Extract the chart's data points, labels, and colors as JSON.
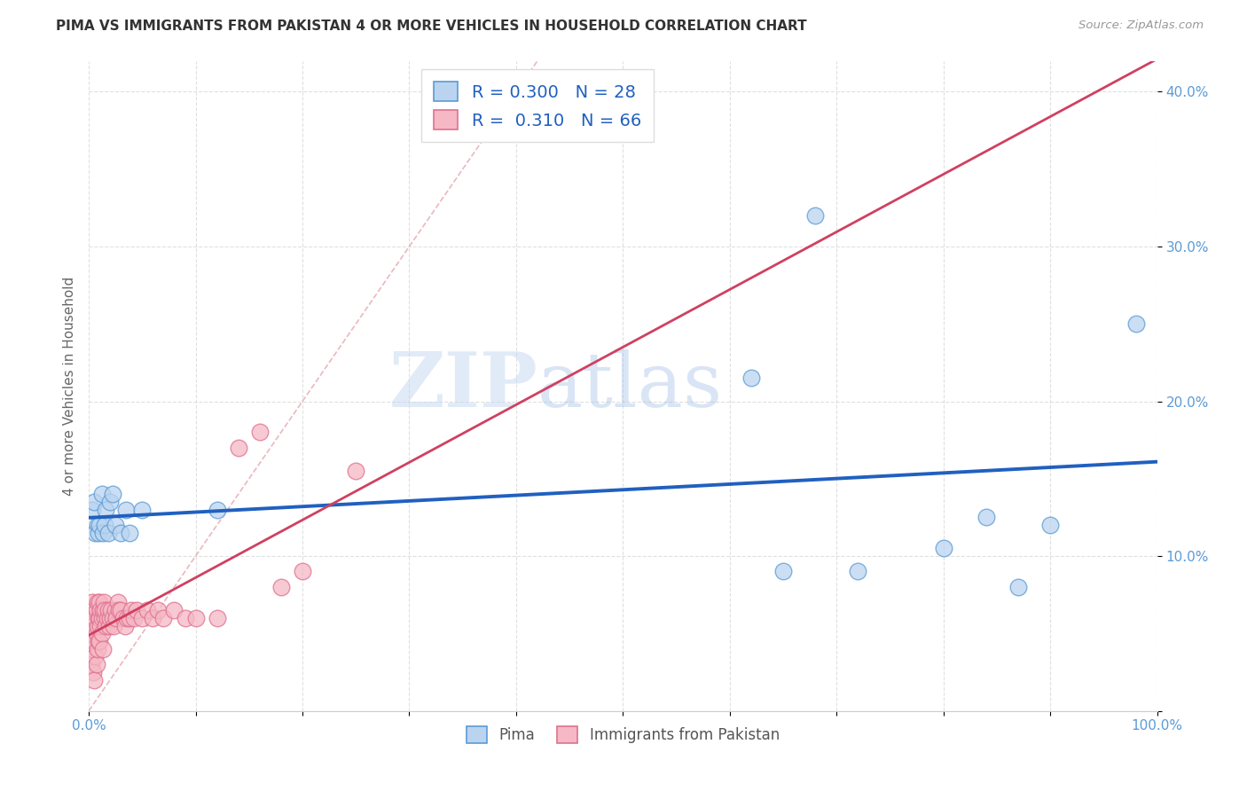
{
  "title": "PIMA VS IMMIGRANTS FROM PAKISTAN 4 OR MORE VEHICLES IN HOUSEHOLD CORRELATION CHART",
  "source": "Source: ZipAtlas.com",
  "ylabel": "4 or more Vehicles in Household",
  "legend_label_1": "Pima",
  "legend_label_2": "Immigrants from Pakistan",
  "r1": 0.3,
  "n1": 28,
  "r2": 0.31,
  "n2": 66,
  "xlim": [
    0,
    1.0
  ],
  "ylim": [
    0,
    0.42
  ],
  "xticks": [
    0.0,
    0.1,
    0.2,
    0.3,
    0.4,
    0.5,
    0.6,
    0.7,
    0.8,
    0.9,
    1.0
  ],
  "xticklabels": [
    "0.0%",
    "",
    "",
    "",
    "",
    "",
    "",
    "",
    "",
    "",
    "100.0%"
  ],
  "yticks": [
    0.0,
    0.1,
    0.2,
    0.3,
    0.4
  ],
  "yticklabels": [
    "",
    "10.0%",
    "20.0%",
    "30.0%",
    "40.0%"
  ],
  "color_pima": "#bad4f0",
  "color_pakistan": "#f5b8c4",
  "color_pima_edge": "#5b9bd5",
  "color_pakistan_edge": "#e07090",
  "color_line_pima": "#2060c0",
  "color_line_pakistan": "#d04060",
  "color_diagonal": "#e8b0b8",
  "pima_x": [
    0.003,
    0.005,
    0.006,
    0.008,
    0.009,
    0.01,
    0.012,
    0.013,
    0.015,
    0.016,
    0.018,
    0.02,
    0.022,
    0.025,
    0.03,
    0.035,
    0.038,
    0.05,
    0.12,
    0.62,
    0.65,
    0.68,
    0.72,
    0.8,
    0.84,
    0.87,
    0.9,
    0.98
  ],
  "pima_y": [
    0.13,
    0.135,
    0.115,
    0.12,
    0.115,
    0.12,
    0.14,
    0.115,
    0.12,
    0.13,
    0.115,
    0.135,
    0.14,
    0.12,
    0.115,
    0.13,
    0.115,
    0.13,
    0.13,
    0.215,
    0.09,
    0.32,
    0.09,
    0.105,
    0.125,
    0.08,
    0.12,
    0.25
  ],
  "pakistan_x": [
    0.001,
    0.002,
    0.002,
    0.003,
    0.003,
    0.004,
    0.004,
    0.005,
    0.005,
    0.005,
    0.006,
    0.006,
    0.007,
    0.007,
    0.007,
    0.008,
    0.008,
    0.008,
    0.009,
    0.009,
    0.01,
    0.01,
    0.01,
    0.011,
    0.011,
    0.012,
    0.012,
    0.013,
    0.013,
    0.014,
    0.015,
    0.015,
    0.016,
    0.017,
    0.018,
    0.019,
    0.02,
    0.021,
    0.022,
    0.023,
    0.025,
    0.026,
    0.027,
    0.028,
    0.03,
    0.032,
    0.034,
    0.036,
    0.038,
    0.04,
    0.042,
    0.045,
    0.05,
    0.055,
    0.06,
    0.065,
    0.07,
    0.08,
    0.09,
    0.1,
    0.12,
    0.14,
    0.16,
    0.18,
    0.2,
    0.25
  ],
  "pakistan_y": [
    0.05,
    0.06,
    0.03,
    0.07,
    0.04,
    0.055,
    0.025,
    0.065,
    0.045,
    0.02,
    0.06,
    0.035,
    0.065,
    0.05,
    0.03,
    0.055,
    0.04,
    0.07,
    0.06,
    0.045,
    0.06,
    0.045,
    0.07,
    0.055,
    0.065,
    0.06,
    0.05,
    0.065,
    0.04,
    0.07,
    0.06,
    0.065,
    0.055,
    0.06,
    0.065,
    0.055,
    0.06,
    0.065,
    0.06,
    0.055,
    0.065,
    0.06,
    0.07,
    0.065,
    0.065,
    0.06,
    0.055,
    0.06,
    0.06,
    0.065,
    0.06,
    0.065,
    0.06,
    0.065,
    0.06,
    0.065,
    0.06,
    0.065,
    0.06,
    0.06,
    0.06,
    0.17,
    0.18,
    0.08,
    0.09,
    0.155
  ],
  "watermark_zip": "ZIP",
  "watermark_atlas": "atlas",
  "background_color": "#ffffff",
  "grid_color": "#dddddd",
  "tick_color": "#5b9bd5",
  "axis_label_color": "#666666"
}
